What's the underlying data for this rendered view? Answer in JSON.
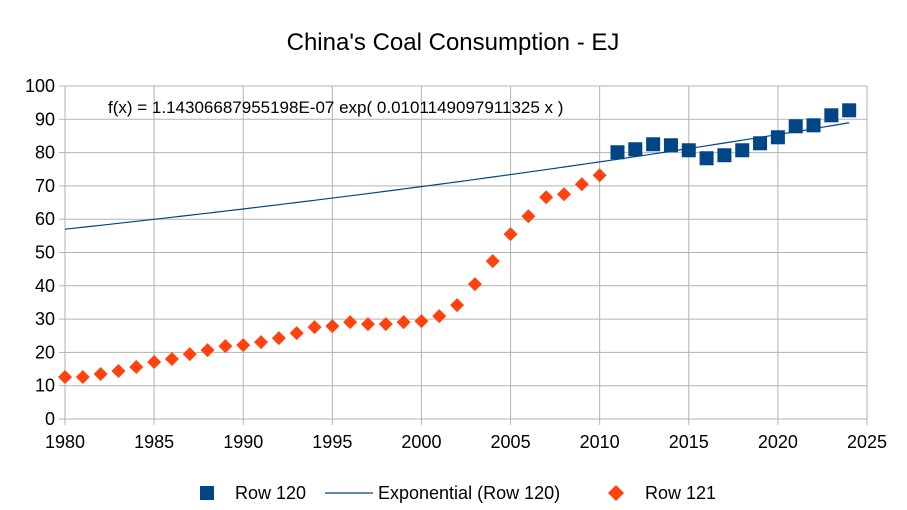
{
  "chart_data": {
    "type": "scatter",
    "title": "China's Coal Consumption - EJ",
    "xlabel": "",
    "ylabel": "",
    "xlim": [
      1980,
      2025
    ],
    "ylim": [
      0,
      100
    ],
    "x_ticks": [
      "1980",
      "1985",
      "1990",
      "1995",
      "2000",
      "2005",
      "2010",
      "2015",
      "2020",
      "2025"
    ],
    "y_ticks": [
      "0",
      "10",
      "20",
      "30",
      "40",
      "50",
      "60",
      "70",
      "80",
      "90",
      "100"
    ],
    "grid": true,
    "legend_position": "bottom",
    "series": [
      {
        "name": "Row 120",
        "marker": "square",
        "color": "#004586",
        "x": [
          2011,
          2012,
          2013,
          2014,
          2015,
          2016,
          2017,
          2018,
          2019,
          2020,
          2021,
          2022,
          2023,
          2024
        ],
        "values": [
          80.1,
          81.0,
          82.5,
          82.2,
          80.7,
          78.3,
          79.2,
          80.7,
          82.8,
          84.6,
          87.9,
          88.2,
          91.2,
          92.7
        ]
      },
      {
        "name": "Row 121",
        "marker": "diamond",
        "color": "#ff420e",
        "x": [
          1980,
          1981,
          1982,
          1983,
          1984,
          1985,
          1986,
          1987,
          1988,
          1989,
          1990,
          1991,
          1992,
          1993,
          1994,
          1995,
          1996,
          1997,
          1998,
          1999,
          2000,
          2001,
          2002,
          2003,
          2004,
          2005,
          2006,
          2007,
          2008,
          2009,
          2010
        ],
        "values": [
          12.6,
          12.6,
          13.5,
          14.4,
          15.6,
          17.1,
          18.0,
          19.5,
          20.7,
          21.9,
          22.2,
          23.1,
          24.3,
          25.8,
          27.6,
          27.9,
          29.1,
          28.5,
          28.5,
          29.1,
          29.4,
          30.9,
          34.2,
          40.5,
          47.4,
          55.5,
          60.9,
          66.6,
          67.5,
          70.5,
          73.2
        ]
      }
    ],
    "trendline": {
      "name": "Exponential (Row 120)",
      "type": "exponential",
      "color": "#004586",
      "a": 1.14306687955198e-07,
      "b": 0.0101149097911325,
      "x_range": [
        1980,
        2024
      ],
      "equation_label": "f(x) = 1.14306687955198E-07 exp( 0.0101149097911325 x )"
    },
    "legend": [
      "Row 120",
      "Exponential (Row 120)",
      "Row 121"
    ]
  }
}
